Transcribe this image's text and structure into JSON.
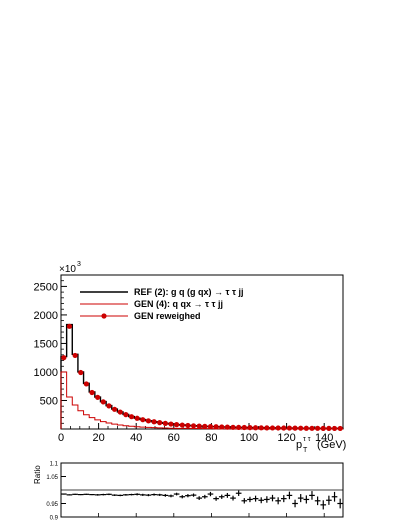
{
  "chart_data": [
    {
      "type": "line",
      "exponent_label": "×10",
      "exponent_power": "3",
      "xlabel_main": "p",
      "xlabel_sub": "T",
      "xlabel_sup": "τ τ",
      "xlabel_unit": "(GeV)",
      "xlim": [
        0,
        150
      ],
      "ylim": [
        0,
        2700
      ],
      "x_ticks": [
        0,
        20,
        40,
        60,
        80,
        100,
        120,
        140
      ],
      "y_ticks": [
        500,
        1000,
        1500,
        2000,
        2500
      ],
      "bin_edges": [
        0,
        3,
        6,
        9,
        12,
        15,
        18,
        21,
        24,
        27,
        30,
        33,
        36,
        39,
        42,
        45,
        48,
        51,
        54,
        57,
        60,
        63,
        66,
        69,
        72,
        75,
        78,
        81,
        84,
        87,
        90,
        93,
        96,
        99,
        102,
        105,
        108,
        111,
        114,
        117,
        120,
        123,
        126,
        129,
        132,
        135,
        138,
        141,
        144,
        147,
        150
      ],
      "legend_position": "top-left",
      "series": [
        {
          "name": "REF (2): g q (g qx) → τ τ jj",
          "color": "#000000",
          "style": "step",
          "values": [
            1270,
            1830,
            1310,
            1000,
            800,
            650,
            560,
            480,
            410,
            350,
            300,
            255,
            218,
            190,
            165,
            145,
            128,
            113,
            100,
            88,
            78,
            70,
            63,
            57,
            52,
            47,
            43,
            40,
            37,
            34,
            31,
            29,
            27,
            25,
            23,
            22,
            21,
            20,
            19,
            18,
            17,
            16,
            15,
            14,
            13,
            12,
            12,
            11,
            11,
            10
          ]
        },
        {
          "name": "GEN (4): q qx → τ τ jj",
          "color": "#cc0000",
          "style": "step",
          "values": [
            1000,
            560,
            420,
            320,
            250,
            200,
            160,
            130,
            105,
            85,
            70,
            58,
            48,
            40,
            33,
            28,
            24,
            20,
            17,
            14,
            12,
            11,
            10,
            9,
            8,
            7,
            6,
            5,
            5,
            4,
            4,
            3,
            3,
            3,
            2,
            2,
            2,
            2,
            2,
            1,
            1,
            1,
            1,
            1,
            1,
            1,
            1,
            1,
            1,
            1
          ]
        },
        {
          "name": "GEN reweighed",
          "color": "#cc0000",
          "style": "markers",
          "values": [
            1250,
            1800,
            1290,
            990,
            790,
            640,
            555,
            475,
            405,
            345,
            297,
            252,
            216,
            188,
            163,
            143,
            127,
            112,
            99,
            87,
            77,
            69,
            62,
            56,
            51,
            46,
            42,
            39,
            36,
            33,
            30,
            28,
            26,
            24,
            22,
            21,
            20,
            19,
            18,
            17,
            16,
            15,
            14,
            13,
            12,
            12,
            11,
            11,
            10,
            10
          ]
        }
      ]
    },
    {
      "type": "scatter",
      "ylabel": "Ratio",
      "xlim": [
        0,
        150
      ],
      "ylim": [
        0.9,
        1.1
      ],
      "y_ticks": [
        0.9,
        0.95,
        1.05,
        1.1
      ],
      "y_tick_labels": [
        "0.9",
        "0.95",
        "1.05",
        "1.1"
      ],
      "reference_line": 1.0,
      "series": [
        {
          "name": "",
          "color": "#000000",
          "x": [
            1.5,
            4.5,
            7.5,
            10.5,
            13.5,
            16.5,
            19.5,
            22.5,
            25.5,
            28.5,
            31.5,
            34.5,
            37.5,
            40.5,
            43.5,
            46.5,
            49.5,
            52.5,
            55.5,
            58.5,
            61.5,
            64.5,
            67.5,
            70.5,
            73.5,
            76.5,
            79.5,
            82.5,
            85.5,
            88.5,
            91.5,
            94.5,
            97.5,
            100.5,
            103.5,
            106.5,
            109.5,
            112.5,
            115.5,
            118.5,
            121.5,
            124.5,
            127.5,
            130.5,
            133.5,
            136.5,
            139.5,
            142.5,
            145.5,
            148.5
          ],
          "y": [
            0.985,
            0.982,
            0.984,
            0.983,
            0.984,
            0.983,
            0.982,
            0.983,
            0.984,
            0.981,
            0.98,
            0.982,
            0.983,
            0.984,
            0.982,
            0.981,
            0.983,
            0.982,
            0.98,
            0.978,
            0.985,
            0.975,
            0.979,
            0.981,
            0.97,
            0.975,
            0.985,
            0.968,
            0.975,
            0.98,
            0.97,
            0.988,
            0.96,
            0.965,
            0.968,
            0.962,
            0.965,
            0.97,
            0.96,
            0.968,
            0.98,
            0.95,
            0.97,
            0.965,
            0.98,
            0.96,
            0.945,
            0.962,
            0.975,
            0.95
          ],
          "err": [
            0.002,
            0.002,
            0.002,
            0.002,
            0.002,
            0.002,
            0.003,
            0.003,
            0.003,
            0.003,
            0.003,
            0.003,
            0.003,
            0.004,
            0.004,
            0.004,
            0.004,
            0.004,
            0.005,
            0.005,
            0.005,
            0.006,
            0.006,
            0.006,
            0.007,
            0.007,
            0.008,
            0.008,
            0.008,
            0.009,
            0.009,
            0.01,
            0.01,
            0.01,
            0.011,
            0.011,
            0.012,
            0.012,
            0.013,
            0.013,
            0.014,
            0.014,
            0.015,
            0.015,
            0.016,
            0.016,
            0.017,
            0.017,
            0.018,
            0.018
          ]
        }
      ]
    }
  ]
}
